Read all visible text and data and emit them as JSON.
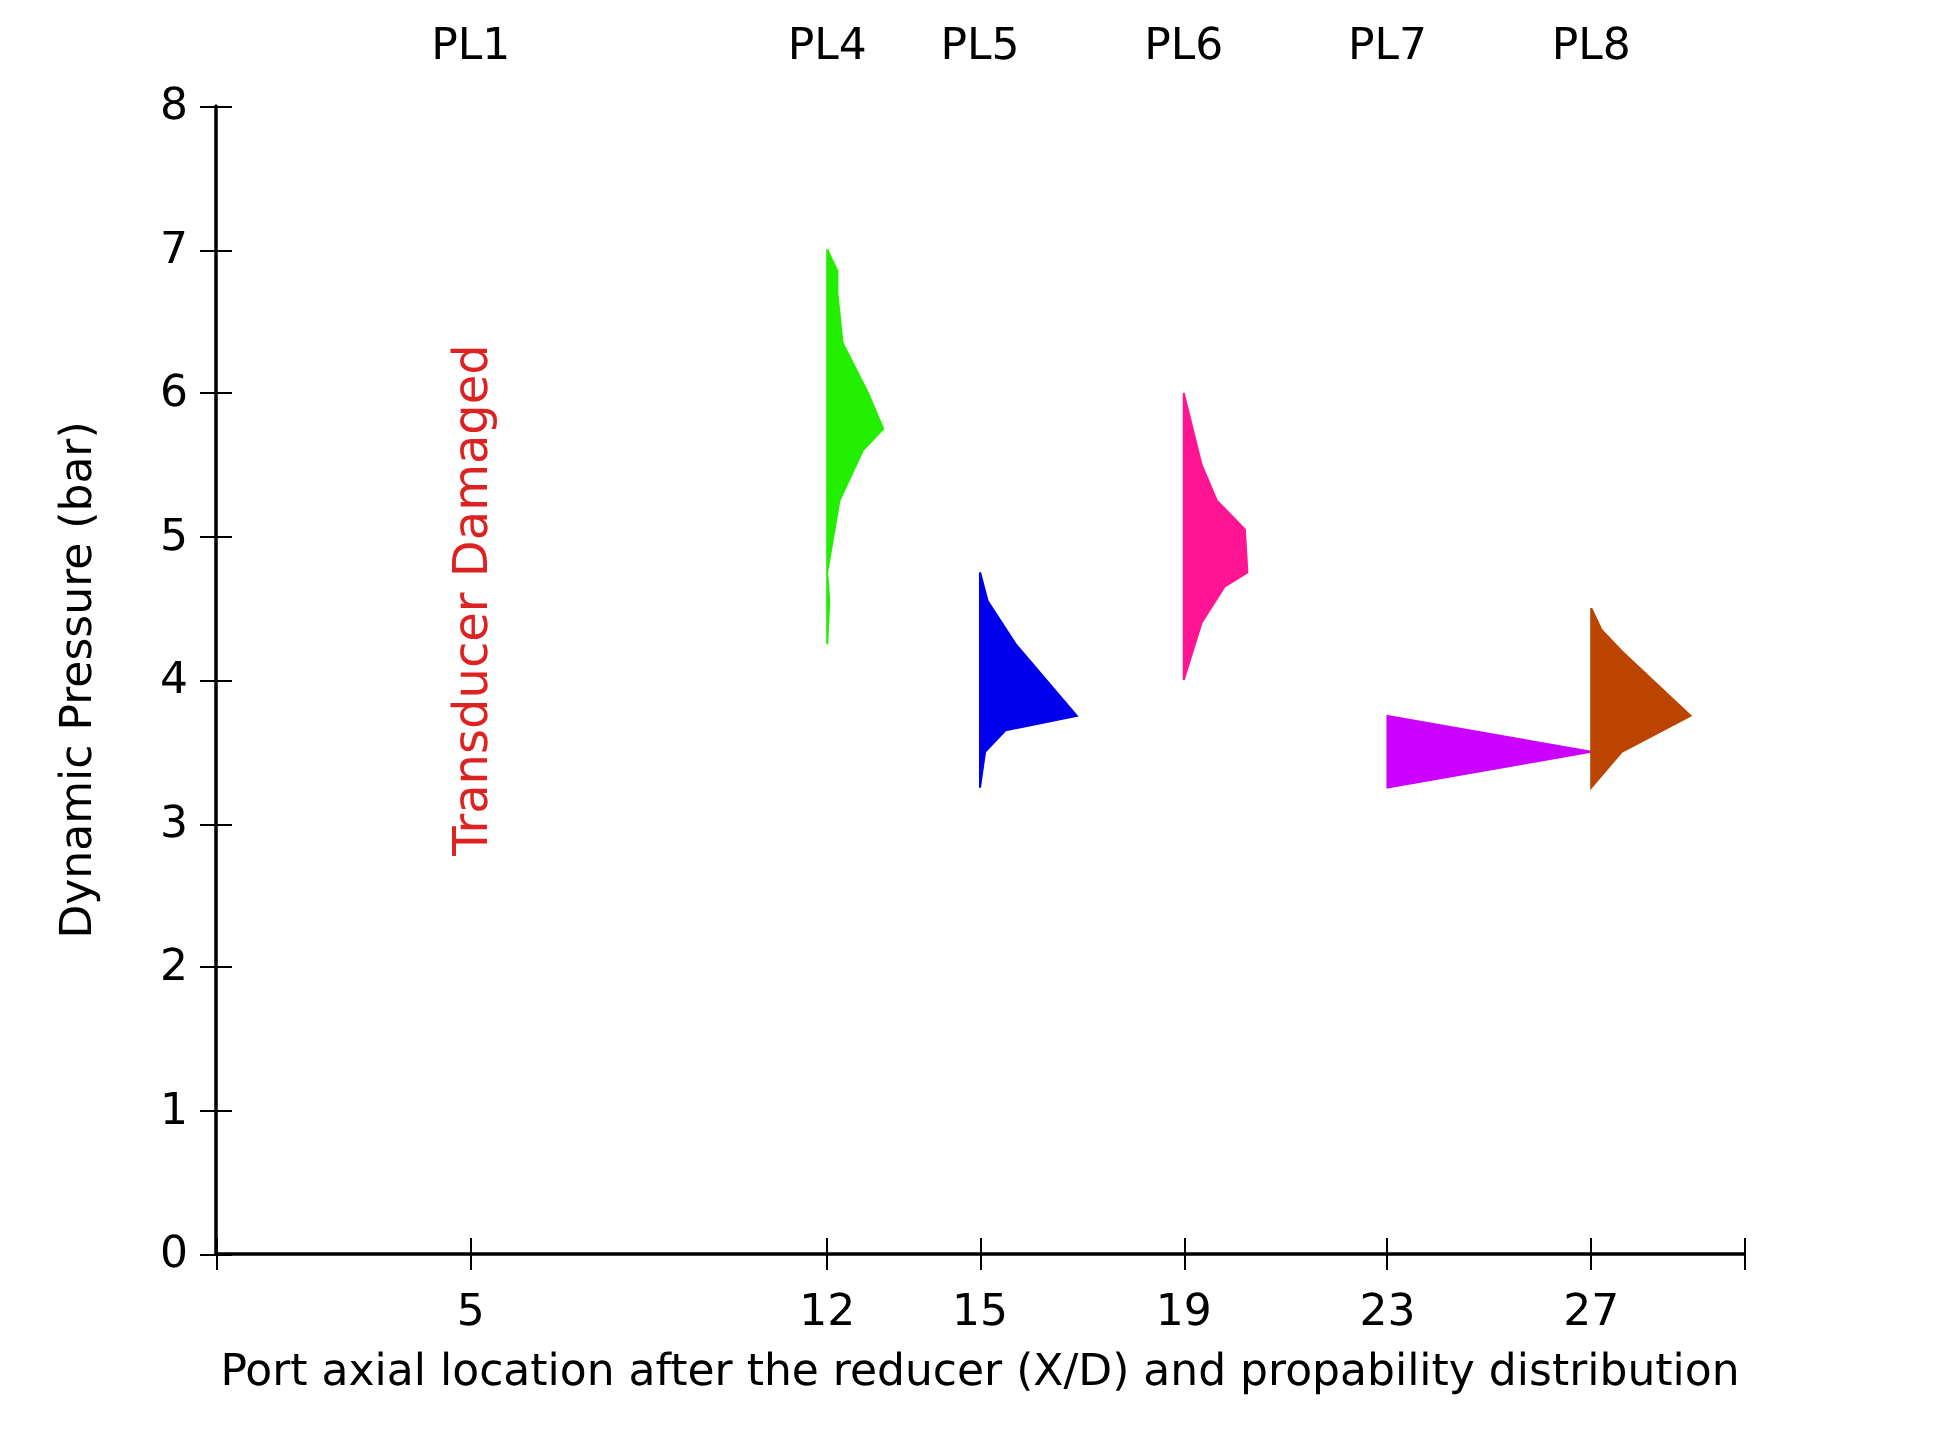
{
  "chart_data": {
    "type": "area",
    "xlabel": "Port axial location after the reducer (X/D) and propability distribution",
    "ylabel": "Dynamic Pressure (bar)",
    "xlim": [
      0,
      30
    ],
    "xticks": [
      {
        "value": 0,
        "label": null
      },
      5,
      12,
      15,
      19,
      23,
      27,
      {
        "value": 30,
        "label": null
      }
    ],
    "ylim": [
      0,
      8
    ],
    "yticks": [
      0,
      1,
      2,
      3,
      4,
      5,
      6,
      7,
      8
    ],
    "grid": false,
    "annotations": [
      "PL1",
      "PL4",
      "PL5",
      "PL6",
      "PL7",
      "PL8",
      "Transducer Damaged"
    ],
    "series": [
      {
        "color": "#22ee00",
        "x": [
          12,
          12.04,
          12,
          12.24,
          12.7,
          13.1,
          12.8,
          12.3,
          12.2,
          12.2,
          12
        ],
        "values": [
          4.25,
          4.55,
          4.75,
          5.25,
          5.6,
          5.75,
          6.0,
          6.35,
          6.7,
          6.85,
          7.0
        ]
      },
      {
        "color": "#0000ee",
        "x": [
          15,
          15.1,
          15.5,
          16.9,
          15.7,
          15.15,
          15
        ],
        "values": [
          3.25,
          3.5,
          3.65,
          3.75,
          4.25,
          4.55,
          4.75
        ]
      },
      {
        "color": "#ff1493",
        "x": [
          19,
          19.35,
          19.8,
          20.25,
          20.2,
          19.65,
          19.35,
          19
        ],
        "values": [
          4.0,
          4.4,
          4.65,
          4.75,
          5.05,
          5.25,
          5.5,
          6.0
        ]
      },
      {
        "color": "#cc00ff",
        "x": [
          23,
          27,
          23
        ],
        "values": [
          3.25,
          3.5,
          3.75
        ]
      },
      {
        "color": "#bb4400",
        "x": [
          27,
          27.6,
          28.95,
          27.6,
          27.2,
          27
        ],
        "values": [
          3.25,
          3.5,
          3.75,
          4.2,
          4.35,
          4.5
        ]
      }
    ]
  }
}
